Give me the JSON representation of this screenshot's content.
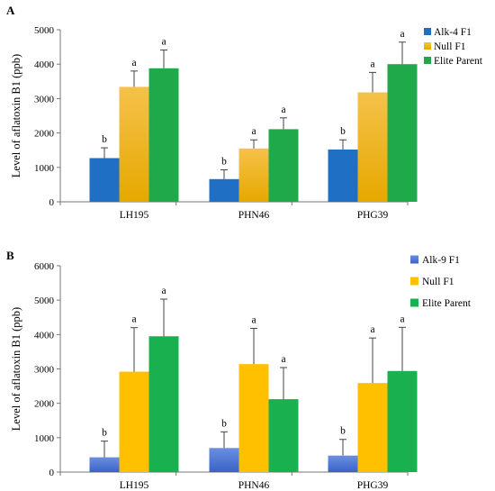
{
  "chart_data": [
    {
      "type": "bar",
      "panel_label": "A",
      "ylabel": "Level of aflatoxin B1 (ppb)",
      "xlabel": "",
      "ylim": [
        0,
        5000
      ],
      "yticks": [
        0,
        1000,
        2000,
        3000,
        4000,
        5000
      ],
      "categories": [
        "LH195",
        "PHN46",
        "PHG39"
      ],
      "legend_position": "right",
      "series": [
        {
          "name": "Alk-4 F1",
          "color": "#1f6fc5",
          "gradient_to": "#1f6fc5",
          "values": [
            1270,
            660,
            1520
          ],
          "errors": [
            300,
            270,
            280
          ],
          "letters": [
            "b",
            "b",
            "b"
          ]
        },
        {
          "name": "Null F1",
          "color": "#f5c24a",
          "gradient_to": "#e6a800",
          "values": [
            3340,
            1550,
            3180
          ],
          "errors": [
            460,
            250,
            580
          ],
          "letters": [
            "a",
            "a",
            "a"
          ]
        },
        {
          "name": "Elite Parent",
          "color": "#1fa94b",
          "gradient_to": "#1fa94b",
          "values": [
            3880,
            2110,
            4000
          ],
          "errors": [
            530,
            330,
            640
          ],
          "letters": [
            "a",
            "a",
            "a"
          ]
        }
      ]
    },
    {
      "type": "bar",
      "panel_label": "B",
      "ylabel": "Level of aflatoxin B1 (ppb)",
      "xlabel": "",
      "ylim": [
        0,
        6000
      ],
      "yticks": [
        0,
        1000,
        2000,
        3000,
        4000,
        5000,
        6000
      ],
      "categories": [
        "LH195",
        "PHN46",
        "PHG39"
      ],
      "legend_position": "right",
      "series": [
        {
          "name": "Alk-9 F1",
          "color": "#6a8fe0",
          "gradient_to": "#3a63c8",
          "values": [
            430,
            700,
            480
          ],
          "errors": [
            470,
            470,
            470
          ],
          "letters": [
            "b",
            "b",
            "b"
          ]
        },
        {
          "name": "Null F1",
          "color": "#ffc000",
          "gradient_to": "#ffc000",
          "values": [
            2920,
            3140,
            2590
          ],
          "errors": [
            1280,
            1040,
            1310
          ],
          "letters": [
            "a",
            "a",
            "a"
          ]
        },
        {
          "name": "Elite Parent",
          "color": "#19b050",
          "gradient_to": "#19b050",
          "values": [
            3950,
            2120,
            2940
          ],
          "errors": [
            1080,
            920,
            1270
          ],
          "letters": [
            "a",
            "a",
            "a"
          ]
        }
      ]
    }
  ]
}
